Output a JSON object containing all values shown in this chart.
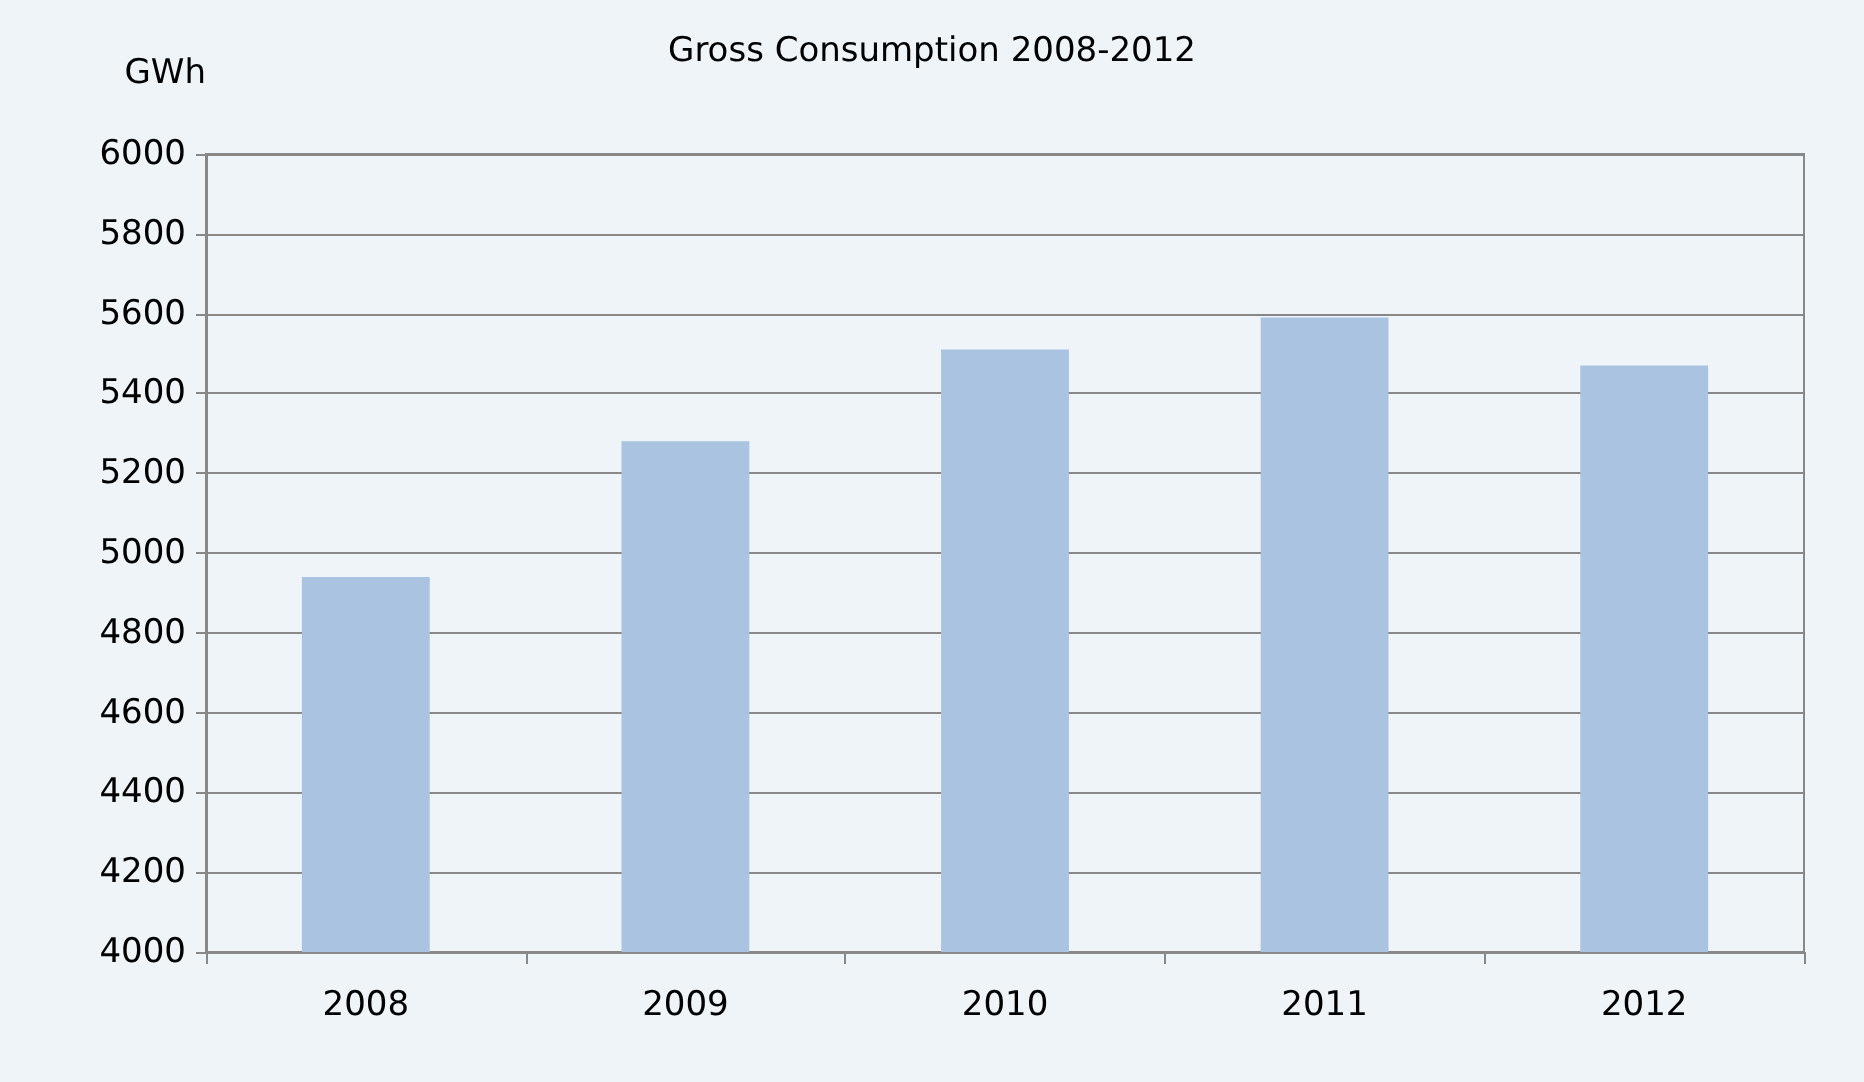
{
  "chart_data": {
    "type": "bar",
    "title": "Gross Consumption 2008-2012",
    "ylabel": "GWh",
    "categories": [
      "2008",
      "2009",
      "2010",
      "2011",
      "2012"
    ],
    "values": [
      4940,
      5280,
      5510,
      5590,
      5470
    ],
    "color": "#aac3e0",
    "ylim": [
      4000,
      6000
    ],
    "yticks": [
      4000,
      4200,
      4400,
      4600,
      4800,
      5000,
      5200,
      5400,
      5600,
      5800,
      6000
    ],
    "grid": "y"
  }
}
